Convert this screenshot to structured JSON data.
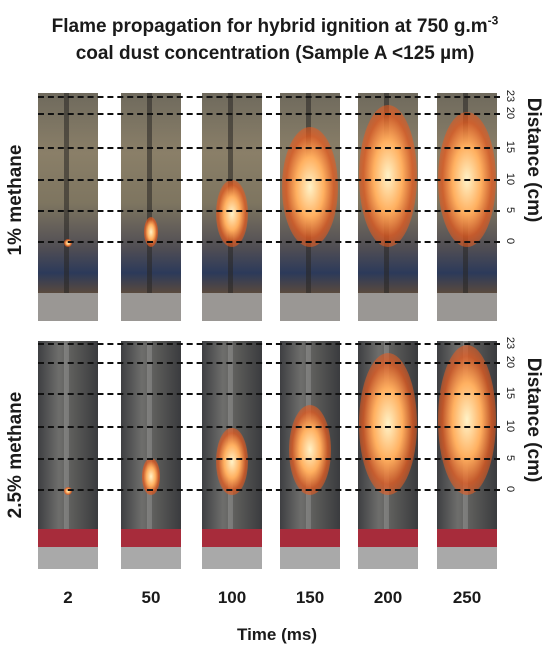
{
  "title": {
    "line1_prefix": "Flame propagation for hybrid ignition at 750 g.m",
    "line1_sup": "-3",
    "line2": "coal dust concentration (Sample A <125 µm)"
  },
  "rows": [
    {
      "label": "1% methane"
    },
    {
      "label": "2.5% methane"
    }
  ],
  "time_labels": [
    "2",
    "50",
    "100",
    "150",
    "200",
    "250"
  ],
  "x_axis_title": "Time (ms)",
  "distance_axis_title": "Distance (cm)",
  "distance_ticks": [
    "23",
    "20",
    "15",
    "10",
    "5",
    "0"
  ],
  "flame_extent": {
    "row1": [
      0.05,
      0.2,
      0.45,
      0.8,
      0.95,
      0.9
    ],
    "row2": [
      0.05,
      0.25,
      0.45,
      0.6,
      0.95,
      1.0
    ]
  },
  "colors": {
    "tube_row1": "#8a7f68",
    "tube_row2": "#5a5a58",
    "base_row2": "#a72c3b",
    "flame": "#ffb060"
  }
}
